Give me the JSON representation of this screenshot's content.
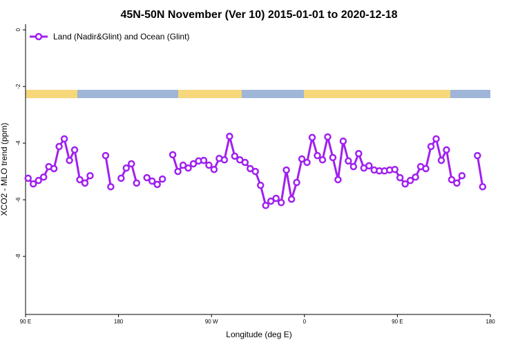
{
  "chart_data": {
    "type": "line",
    "title": "45N-50N November (Ver 10)   2015-01-01 to 2020-12-18",
    "x_label": "Longitude (deg E)",
    "y_label": "XCO2 - MLO trend (ppm)",
    "legend": "top-left",
    "xlim": [
      90,
      540
    ],
    "xticks": [
      {
        "value": 90,
        "label": "90 E"
      },
      {
        "value": 180,
        "label": "180"
      },
      {
        "value": 270,
        "label": "90 W"
      },
      {
        "value": 360,
        "label": "0"
      },
      {
        "value": 450,
        "label": "90 E"
      },
      {
        "value": 540,
        "label": "180"
      }
    ],
    "ylim": [
      -10.05,
      0.2
    ],
    "yticks": [
      0,
      -2,
      -4,
      -6,
      -8
    ],
    "x": [
      92.5,
      97.5,
      102.5,
      107.5,
      112.5,
      117.5,
      122.5,
      127.5,
      132.5,
      137.5,
      142.5,
      147.5,
      152.5,
      157.5,
      162.5,
      167.5,
      172.5,
      177.5,
      182.5,
      187.5,
      192.5,
      197.5,
      202.5,
      207.5,
      212.5,
      217.5,
      222.5,
      227.5,
      232.5,
      237.5,
      242.5,
      247.5,
      252.5,
      257.5,
      262.5,
      267.5,
      272.5,
      277.5,
      282.5,
      287.5,
      292.5,
      297.5,
      302.5,
      307.5,
      312.5,
      317.5,
      322.5,
      327.5,
      332.5,
      337.5,
      342.5,
      347.5,
      352.5,
      357.5,
      362.5,
      367.5,
      372.5,
      377.5,
      382.5,
      387.5,
      392.5,
      397.5,
      402.5,
      407.5,
      412.5,
      417.5,
      422.5,
      427.5,
      432.5,
      437.5,
      442.5,
      447.5,
      452.5,
      457.5,
      462.5,
      467.5,
      472.5,
      477.5,
      482.5,
      487.5,
      492.5,
      497.5,
      502.5,
      507.5,
      512.5,
      517.5,
      522.5,
      527.5,
      532.5
    ],
    "series": [
      {
        "name": "Land (Nadir&Glint) and Ocean (Glint)",
        "color": "#a020f0",
        "values": [
          -5.24,
          -5.44,
          -5.32,
          -5.2,
          -4.83,
          -4.9,
          -4.12,
          -3.85,
          -4.61,
          -4.24,
          -5.29,
          -5.41,
          -5.15,
          null,
          null,
          -4.44,
          -5.54,
          null,
          -5.24,
          -4.88,
          -4.73,
          -5.41,
          null,
          -5.22,
          -5.34,
          -5.46,
          -5.27,
          null,
          -4.41,
          -5.0,
          -4.78,
          -4.88,
          -4.73,
          -4.63,
          -4.61,
          -4.78,
          -4.93,
          -4.54,
          -4.59,
          -3.76,
          -4.46,
          -4.59,
          -4.68,
          -4.9,
          -5.0,
          -5.49,
          -6.2,
          -6.05,
          -5.95,
          -6.1,
          -4.95,
          -5.98,
          -5.39,
          -4.56,
          -4.68,
          -3.8,
          -4.44,
          -4.59,
          -3.78,
          -4.51,
          -5.29,
          -3.93,
          -4.63,
          -4.83,
          -4.37,
          -4.88,
          -4.8,
          -4.95,
          -4.98,
          -4.98,
          -4.95,
          -4.93,
          -5.22,
          -5.44,
          -5.32,
          -5.2,
          -4.83,
          -4.9,
          -4.12,
          -3.85,
          -4.61,
          -4.24,
          -5.29,
          -5.41,
          -5.15,
          null,
          null,
          -4.44,
          -5.54
        ]
      }
    ]
  }
}
